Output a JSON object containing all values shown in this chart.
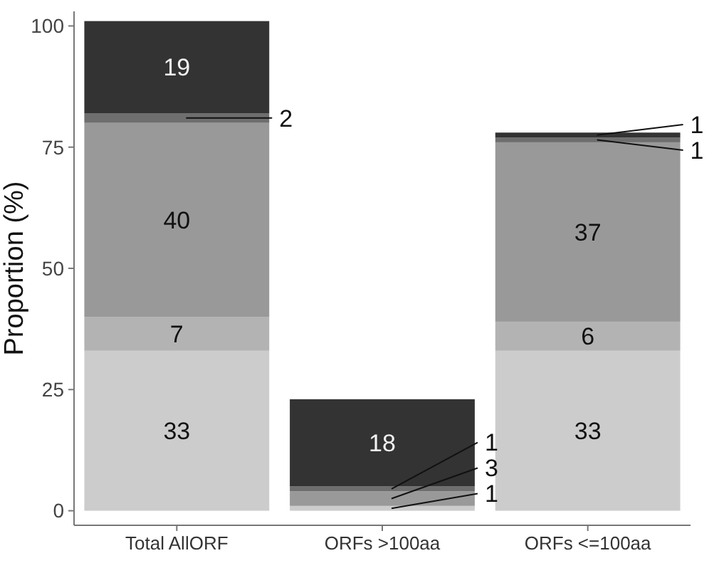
{
  "chart_data": {
    "type": "bar",
    "stacked": true,
    "ylabel": "Proportion (%)",
    "categories": [
      "Total AllORF",
      "ORFs >100aa",
      "ORFs <=100aa"
    ],
    "ylim": [
      -3,
      103
    ],
    "yticks": [
      0,
      25,
      50,
      75,
      100
    ],
    "grid": false,
    "series": [
      {
        "color": "#cccccc",
        "values": [
          33,
          1,
          33
        ],
        "value_labels": [
          "33",
          "1",
          "33"
        ]
      },
      {
        "color": "#b3b3b3",
        "values": [
          7,
          0,
          6
        ],
        "value_labels": [
          "7",
          null,
          "6"
        ]
      },
      {
        "color": "#999999",
        "values": [
          40,
          3,
          37
        ],
        "value_labels": [
          "40",
          "3",
          "37"
        ]
      },
      {
        "color": "#6e6e6e",
        "values": [
          2,
          1,
          1
        ],
        "value_labels": [
          "2",
          "1",
          "1"
        ]
      },
      {
        "color": "#333333",
        "values": [
          19,
          18,
          1
        ],
        "value_labels": [
          "19",
          "18",
          "1"
        ]
      }
    ]
  }
}
